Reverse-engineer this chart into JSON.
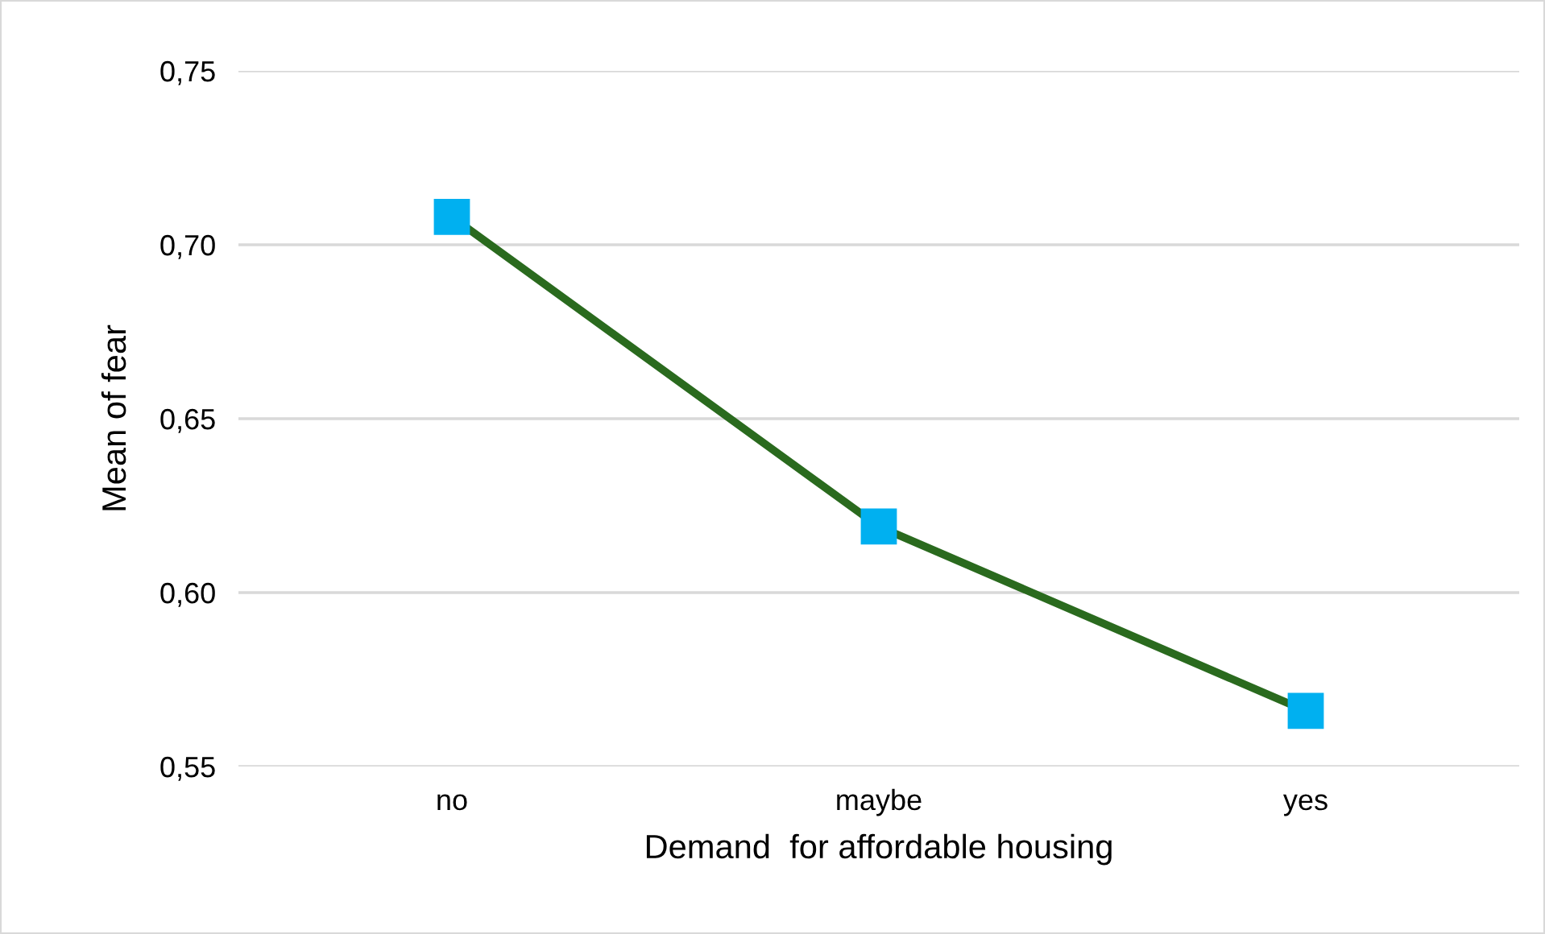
{
  "chart_data": {
    "type": "line",
    "xlabel": "Demand  for affordable housing",
    "ylabel": "Mean of fear",
    "categories": [
      "no",
      "maybe",
      "yes"
    ],
    "series": [
      {
        "color": "#2a6a1e",
        "colors": [
          "#00b0f0",
          "#00b0f0",
          "#00b0f0"
        ],
        "values": [
          0.708,
          0.619,
          0.566
        ]
      }
    ],
    "ylim": [
      0.55,
      0.75
    ],
    "yticks": [
      {
        "value": 0.55,
        "label": "0,55"
      },
      {
        "value": 0.6,
        "label": "0,60"
      },
      {
        "value": 0.65,
        "label": "0,65"
      },
      {
        "value": 0.7,
        "label": "0,70"
      },
      {
        "value": 0.75,
        "label": "0,75"
      }
    ],
    "grid": "y",
    "marker": "square",
    "line_style": "solid",
    "legend": false
  }
}
